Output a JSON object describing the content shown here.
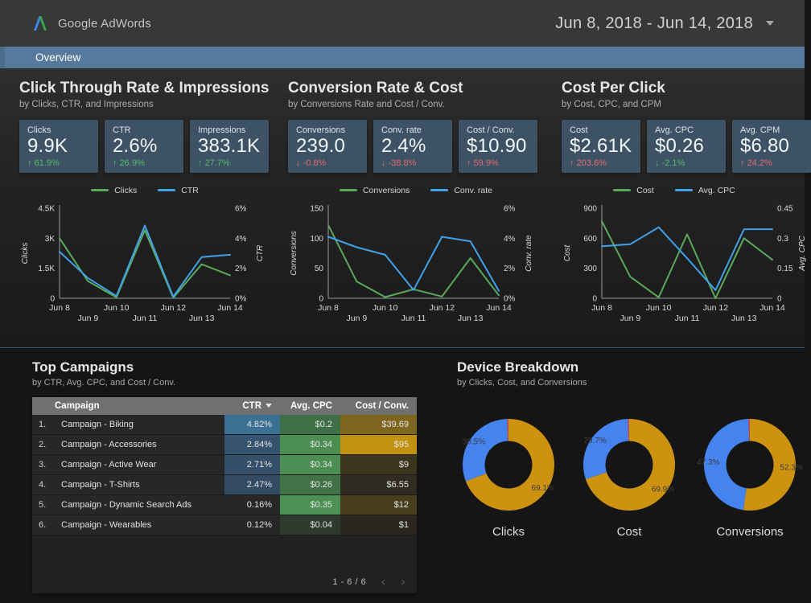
{
  "header": {
    "brand": "Google AdWords",
    "date_range": "Jun 8, 2018 - Jun 14, 2018"
  },
  "tab": {
    "label": "Overview"
  },
  "colors": {
    "line_green": "#5aa85c",
    "line_blue": "#42a0e8",
    "pie_gold": "#cd9310",
    "pie_blue": "#4583ef",
    "pie_red": "#d7453a",
    "delta_green": "#55ba6c",
    "delta_red": "#e16a70"
  },
  "sections": [
    {
      "title": "Click Through Rate & Impressions",
      "subtitle": "by Clicks, CTR, and Impressions",
      "scorecards": [
        {
          "label": "Clicks",
          "value": "9.9K",
          "arrow": "up",
          "delta": "61.9%",
          "sentiment": "positive"
        },
        {
          "label": "CTR",
          "value": "2.6%",
          "arrow": "up",
          "delta": "26.9%",
          "sentiment": "positive"
        },
        {
          "label": "Impressions",
          "value": "383.1K",
          "arrow": "up",
          "delta": "27.7%",
          "sentiment": "positive"
        }
      ]
    },
    {
      "title": "Conversion Rate & Cost",
      "subtitle": "by Conversions Rate and Cost / Conv.",
      "scorecards": [
        {
          "label": "Conversions",
          "value": "239.0",
          "arrow": "down",
          "delta": "-0.8%",
          "sentiment": "negative"
        },
        {
          "label": "Conv. rate",
          "value": "2.4%",
          "arrow": "down",
          "delta": "-38.8%",
          "sentiment": "negative"
        },
        {
          "label": "Cost / Conv.",
          "value": "$10.90",
          "arrow": "up",
          "delta": "59.9%",
          "sentiment": "negative"
        }
      ]
    },
    {
      "title": "Cost Per Click",
      "subtitle": "by Cost, CPC, and CPM",
      "scorecards": [
        {
          "label": "Cost",
          "value": "$2.61K",
          "arrow": "up",
          "delta": "203.6%",
          "sentiment": "negative"
        },
        {
          "label": "Avg. CPC",
          "value": "$0.26",
          "arrow": "down",
          "delta": "-2.1%",
          "sentiment": "positive"
        },
        {
          "label": "Avg. CPM",
          "value": "$6.80",
          "arrow": "up",
          "delta": "24.2%",
          "sentiment": "negative"
        }
      ]
    }
  ],
  "chart_data": [
    {
      "type": "line",
      "id": "clicks_ctr",
      "legend_position": "top",
      "x": [
        "Jun 8",
        "Jun 9",
        "Jun 10",
        "Jun 11",
        "Jun 12",
        "Jun 13",
        "Jun 14"
      ],
      "left_axis": {
        "label": "Clicks",
        "ticks": [
          "0",
          "1.5K",
          "3K",
          "4.5K"
        ],
        "max": 4500
      },
      "right_axis": {
        "label": "CTR",
        "ticks": [
          "0%",
          "2%",
          "4%",
          "6%"
        ],
        "max": 6
      },
      "series": [
        {
          "name": "Clicks",
          "axis": "left",
          "color": "#5aa85c",
          "values": [
            3000,
            850,
            50,
            3400,
            30,
            1700,
            1150
          ]
        },
        {
          "name": "CTR",
          "axis": "right",
          "color": "#42a0e8",
          "values": [
            3.1,
            1.35,
            0.15,
            4.85,
            0.1,
            2.75,
            2.9
          ]
        }
      ]
    },
    {
      "type": "line",
      "id": "conversions_rate",
      "legend_position": "top",
      "x": [
        "Jun 8",
        "Jun 9",
        "Jun 10",
        "Jun 11",
        "Jun 12",
        "Jun 13",
        "Jun 14"
      ],
      "left_axis": {
        "label": "Conversions",
        "ticks": [
          "0",
          "50",
          "100",
          "150"
        ],
        "max": 150
      },
      "right_axis": {
        "label": "Conv. rate",
        "ticks": [
          "0%",
          "2%",
          "4%",
          "6%"
        ],
        "max": 6
      },
      "series": [
        {
          "name": "Conversions",
          "axis": "left",
          "color": "#5aa85c",
          "values": [
            122,
            28,
            2,
            15,
            3,
            67,
            5
          ]
        },
        {
          "name": "Conv. rate",
          "axis": "right",
          "color": "#42a0e8",
          "values": [
            4.1,
            3.4,
            2.9,
            0.55,
            4.1,
            3.8,
            0.5
          ]
        }
      ]
    },
    {
      "type": "line",
      "id": "cost_cpc",
      "legend_position": "top",
      "x": [
        "Jun 8",
        "Jun 9",
        "Jun 10",
        "Jun 11",
        "Jun 12",
        "Jun 13",
        "Jun 14"
      ],
      "left_axis": {
        "label": "Cost",
        "ticks": [
          "0",
          "300",
          "600",
          "900"
        ],
        "max": 900
      },
      "right_axis": {
        "label": "Avg. CPC",
        "ticks": [
          "0",
          "0.15",
          "0.3",
          "0.45"
        ],
        "max": 0.45
      },
      "series": [
        {
          "name": "Cost",
          "axis": "left",
          "color": "#5aa85c",
          "values": [
            770,
            215,
            10,
            640,
            0,
            600,
            385
          ]
        },
        {
          "name": "Avg. CPC",
          "axis": "right",
          "color": "#42a0e8",
          "values": [
            0.26,
            0.27,
            0.355,
            0.2,
            0.04,
            0.345,
            0.345
          ]
        }
      ]
    },
    {
      "type": "pie",
      "id": "device_clicks",
      "title": "Clicks",
      "slices": [
        {
          "pct": 69.1,
          "label": "69.1%",
          "color": "#cd9310"
        },
        {
          "pct": 30.5,
          "label": "30.5%",
          "color": "#4583ef"
        },
        {
          "pct": 0.4,
          "label": "",
          "color": "#d7453a"
        }
      ]
    },
    {
      "type": "pie",
      "id": "device_cost",
      "title": "Cost",
      "slices": [
        {
          "pct": 69.9,
          "label": "69.9%",
          "color": "#cd9310"
        },
        {
          "pct": 29.7,
          "label": "29.7%",
          "color": "#4583ef"
        },
        {
          "pct": 0.4,
          "label": "",
          "color": "#d7453a"
        }
      ]
    },
    {
      "type": "pie",
      "id": "device_conversions",
      "title": "Conversions",
      "slices": [
        {
          "pct": 52.3,
          "label": "52.3%",
          "color": "#cd9310"
        },
        {
          "pct": 47.3,
          "label": "47.3%",
          "color": "#4583ef"
        },
        {
          "pct": 0.4,
          "label": "",
          "color": "#d7453a"
        }
      ]
    }
  ],
  "campaigns": {
    "title": "Top Campaigns",
    "subtitle": "by CTR, Avg. CPC, and Cost / Conv.",
    "columns": {
      "campaign": "Campaign",
      "ctr": "CTR",
      "cpc": "Avg. CPC",
      "cost_conv": "Cost / Conv."
    },
    "sorted_by": "ctr",
    "rows": [
      {
        "rank": "1.",
        "name": "Campaign - Biking",
        "ctr": "4.82%",
        "cpc": "$0.2",
        "cost_conv": "$39.69",
        "ctr_bg": "#3c6f94",
        "cpc_bg": "#3e6f45",
        "cost_bg": "#7f661f"
      },
      {
        "rank": "2.",
        "name": "Campaign - Accessories",
        "ctr": "2.84%",
        "cpc": "$0.34",
        "cost_conv": "$95",
        "ctr_bg": "#35536e",
        "cpc_bg": "#4c8d52",
        "cost_bg": "#c19210"
      },
      {
        "rank": "3.",
        "name": "Campaign - Active Wear",
        "ctr": "2.71%",
        "cpc": "$0.34",
        "cost_conv": "$9",
        "ctr_bg": "#344f69",
        "cpc_bg": "#4c8d52",
        "cost_bg": "#3b351d"
      },
      {
        "rank": "4.",
        "name": "Campaign - T-Shirts",
        "ctr": "2.47%",
        "cpc": "$0.26",
        "cost_conv": "$6.55",
        "ctr_bg": "#324b63",
        "cpc_bg": "#427347",
        "cost_bg": "#2f2d21"
      },
      {
        "rank": "5.",
        "name": "Campaign - Dynamic Search Ads",
        "ctr": "0.16%",
        "cpc": "$0.35",
        "cost_conv": "$12",
        "ctr_bg": "#272727",
        "cpc_bg": "#4d9053",
        "cost_bg": "#473e1d"
      },
      {
        "rank": "6.",
        "name": "Campaign - Wearables",
        "ctr": "0.12%",
        "cpc": "$0.04",
        "cost_conv": "$1",
        "ctr_bg": "#272727",
        "cpc_bg": "#2e3a2e",
        "cost_bg": "#2a281e"
      }
    ],
    "pagination": {
      "label": "1 - 6 / 6",
      "prev": "‹",
      "next": "›"
    }
  },
  "devices": {
    "title": "Device Breakdown",
    "subtitle": "by Clicks, Cost, and Conversions",
    "donut_labels": [
      "Clicks",
      "Cost",
      "Conversions"
    ]
  }
}
